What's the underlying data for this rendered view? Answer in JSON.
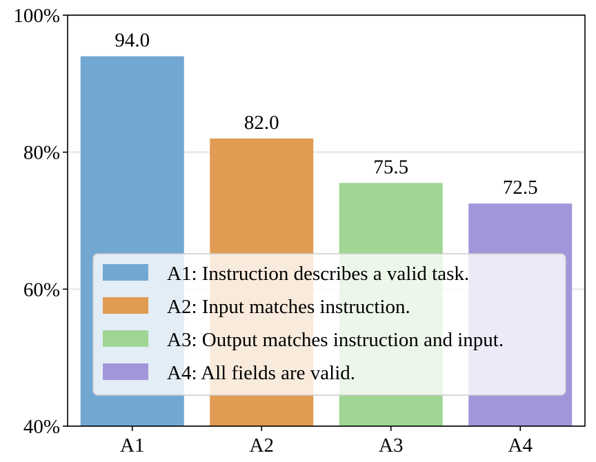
{
  "chart_data": {
    "type": "bar",
    "categories": [
      "A1",
      "A2",
      "A3",
      "A4"
    ],
    "values": [
      94.0,
      82.0,
      75.5,
      72.5
    ],
    "value_labels": [
      "94.0",
      "82.0",
      "75.5",
      "72.5"
    ],
    "colors": [
      "#72a7d2",
      "#e09c52",
      "#9fd695",
      "#a196da"
    ],
    "ylim": [
      40,
      100
    ],
    "yticks": [
      40,
      60,
      80,
      100
    ],
    "ytick_labels": [
      "40%",
      "60%",
      "80%",
      "100%"
    ],
    "grid": true,
    "legend_position": "lower-center",
    "legend": [
      "A1: Instruction describes a valid task.",
      "A2: Input matches instruction.",
      "A3: Output matches instruction and input.",
      "A4: All fields are valid."
    ],
    "title": "",
    "xlabel": "",
    "ylabel": ""
  }
}
